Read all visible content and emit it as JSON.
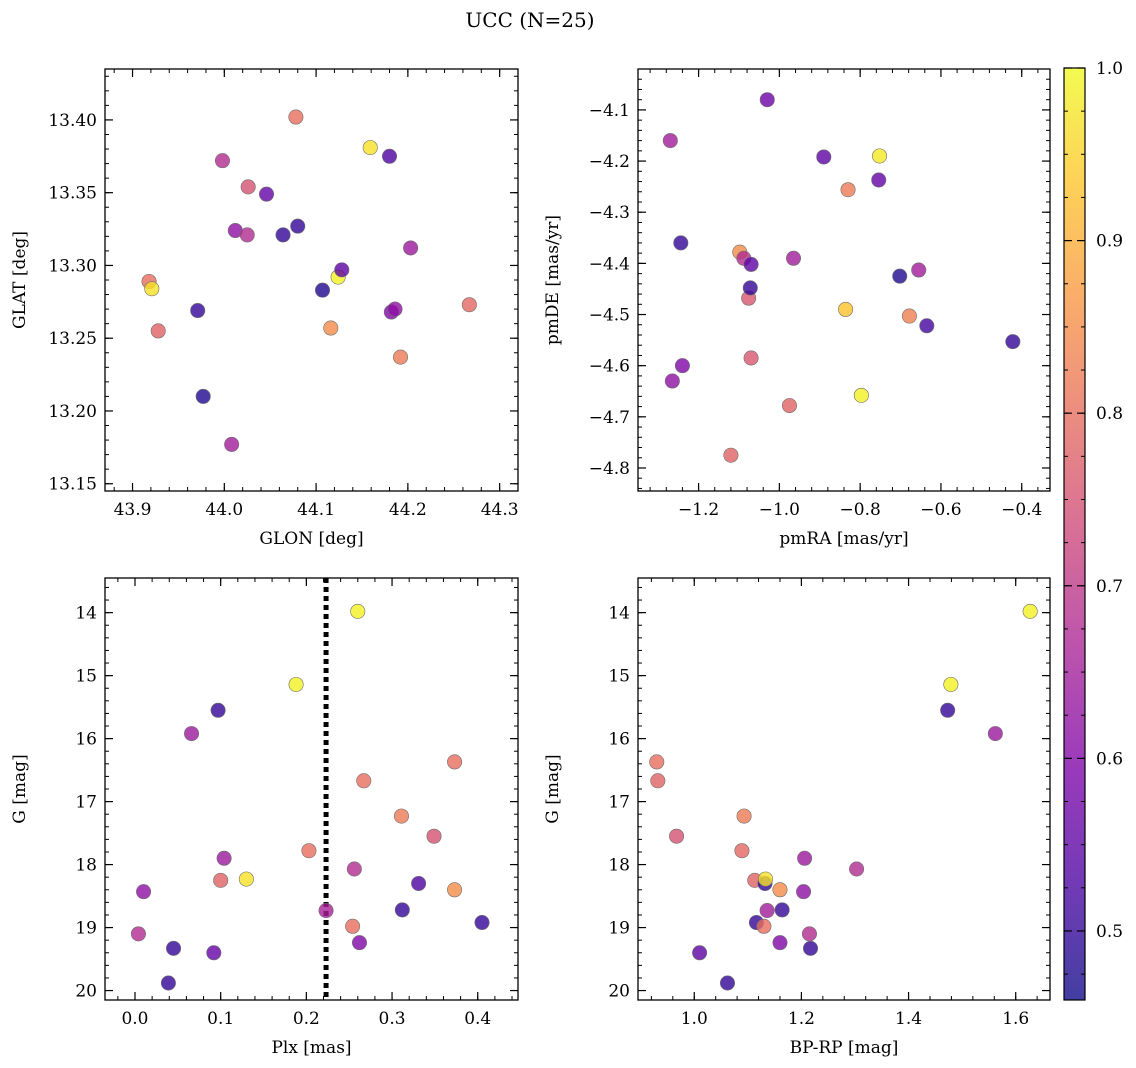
{
  "figure": {
    "title": "UCC (N=25)"
  },
  "colorbar": {
    "colormap": "plasma",
    "range": [
      0.46,
      1.0
    ],
    "ticks": [
      0.5,
      0.6,
      0.7,
      0.8,
      0.9,
      1.0
    ],
    "tick_labels": [
      "0.5",
      "0.6",
      "0.7",
      "0.8",
      "0.9",
      "1.0"
    ]
  },
  "chart_data": [
    {
      "type": "scatter",
      "xlabel": "GLON [deg]",
      "ylabel": "GLAT [deg]",
      "xlim": [
        43.87,
        44.32
      ],
      "ylim": [
        13.145,
        13.435
      ],
      "xticks": [
        43.9,
        44.0,
        44.1,
        44.2,
        44.3
      ],
      "xtick_labels": [
        "43.9",
        "44.0",
        "44.1",
        "44.2",
        "44.3"
      ],
      "yticks": [
        13.15,
        13.2,
        13.25,
        13.3,
        13.35,
        13.4
      ],
      "ytick_labels": [
        "13.15",
        "13.20",
        "13.25",
        "13.30",
        "13.35",
        "13.40"
      ],
      "y_inverted": false,
      "points": [
        {
          "x": 43.918,
          "y": 13.289,
          "c": 0.8
        },
        {
          "x": 43.921,
          "y": 13.284,
          "c": 0.97
        },
        {
          "x": 43.928,
          "y": 13.255,
          "c": 0.78
        },
        {
          "x": 43.971,
          "y": 13.269,
          "c": 0.5
        },
        {
          "x": 43.977,
          "y": 13.21,
          "c": 0.48
        },
        {
          "x": 43.998,
          "y": 13.372,
          "c": 0.68
        },
        {
          "x": 44.008,
          "y": 13.177,
          "c": 0.65
        },
        {
          "x": 44.012,
          "y": 13.324,
          "c": 0.62
        },
        {
          "x": 44.025,
          "y": 13.321,
          "c": 0.68
        },
        {
          "x": 44.026,
          "y": 13.354,
          "c": 0.75
        },
        {
          "x": 44.046,
          "y": 13.349,
          "c": 0.56
        },
        {
          "x": 44.064,
          "y": 13.321,
          "c": 0.5
        },
        {
          "x": 44.078,
          "y": 13.402,
          "c": 0.8
        },
        {
          "x": 44.08,
          "y": 13.327,
          "c": 0.5
        },
        {
          "x": 44.107,
          "y": 13.283,
          "c": 0.48
        },
        {
          "x": 44.116,
          "y": 13.257,
          "c": 0.85
        },
        {
          "x": 44.124,
          "y": 13.292,
          "c": 0.99
        },
        {
          "x": 44.128,
          "y": 13.297,
          "c": 0.55
        },
        {
          "x": 44.159,
          "y": 13.381,
          "c": 0.97
        },
        {
          "x": 44.18,
          "y": 13.375,
          "c": 0.53
        },
        {
          "x": 44.182,
          "y": 13.268,
          "c": 0.6
        },
        {
          "x": 44.186,
          "y": 13.27,
          "c": 0.62
        },
        {
          "x": 44.192,
          "y": 13.237,
          "c": 0.82
        },
        {
          "x": 44.203,
          "y": 13.312,
          "c": 0.64
        },
        {
          "x": 44.267,
          "y": 13.273,
          "c": 0.79
        }
      ]
    },
    {
      "type": "scatter",
      "xlabel": "pmRA [mas/yr]",
      "ylabel": "pmDE [mas/yr]",
      "xlim": [
        -1.35,
        -0.33
      ],
      "ylim": [
        -4.845,
        -4.02
      ],
      "xticks": [
        -1.2,
        -1.0,
        -0.8,
        -0.6,
        -0.4
      ],
      "xtick_labels": [
        "−1.2",
        "−1.0",
        "−0.8",
        "−0.6",
        "−0.4"
      ],
      "yticks": [
        -4.8,
        -4.7,
        -4.6,
        -4.5,
        -4.4,
        -4.3,
        -4.2,
        -4.1
      ],
      "ytick_labels": [
        "−4.8",
        "−4.7",
        "−4.6",
        "−4.5",
        "−4.4",
        "−4.3",
        "−4.2",
        "−4.1"
      ],
      "y_inverted": false,
      "points": [
        {
          "x": -1.27,
          "y": -4.16,
          "c": 0.65
        },
        {
          "x": -1.265,
          "y": -4.63,
          "c": 0.62
        },
        {
          "x": -1.244,
          "y": -4.36,
          "c": 0.5
        },
        {
          "x": -1.24,
          "y": -4.6,
          "c": 0.6
        },
        {
          "x": -1.12,
          "y": -4.775,
          "c": 0.78
        },
        {
          "x": -1.098,
          "y": -4.378,
          "c": 0.85
        },
        {
          "x": -1.088,
          "y": -4.39,
          "c": 0.68
        },
        {
          "x": -1.076,
          "y": -4.468,
          "c": 0.76
        },
        {
          "x": -1.072,
          "y": -4.448,
          "c": 0.5
        },
        {
          "x": -1.07,
          "y": -4.402,
          "c": 0.55
        },
        {
          "x": -1.07,
          "y": -4.585,
          "c": 0.76
        },
        {
          "x": -1.03,
          "y": -4.08,
          "c": 0.57
        },
        {
          "x": -0.975,
          "y": -4.678,
          "c": 0.78
        },
        {
          "x": -0.965,
          "y": -4.39,
          "c": 0.65
        },
        {
          "x": -0.89,
          "y": -4.192,
          "c": 0.55
        },
        {
          "x": -0.836,
          "y": -4.49,
          "c": 0.93
        },
        {
          "x": -0.83,
          "y": -4.256,
          "c": 0.82
        },
        {
          "x": -0.797,
          "y": -4.658,
          "c": 0.99
        },
        {
          "x": -0.754,
          "y": -4.237,
          "c": 0.56
        },
        {
          "x": -0.752,
          "y": -4.19,
          "c": 0.98
        },
        {
          "x": -0.702,
          "y": -4.425,
          "c": 0.48
        },
        {
          "x": -0.678,
          "y": -4.503,
          "c": 0.83
        },
        {
          "x": -0.655,
          "y": -4.413,
          "c": 0.65
        },
        {
          "x": -0.635,
          "y": -4.522,
          "c": 0.52
        },
        {
          "x": -0.422,
          "y": -4.553,
          "c": 0.5
        }
      ]
    },
    {
      "type": "scatter",
      "xlabel": "Plx [mas]",
      "ylabel": "G [mag]",
      "xlim": [
        -0.035,
        0.447
      ],
      "ylim": [
        20.15,
        13.45
      ],
      "xticks": [
        0.0,
        0.1,
        0.2,
        0.3,
        0.4
      ],
      "xtick_labels": [
        "0.0",
        "0.1",
        "0.2",
        "0.3",
        "0.4"
      ],
      "yticks": [
        14,
        15,
        16,
        17,
        18,
        19,
        20
      ],
      "ytick_labels": [
        "14",
        "15",
        "16",
        "17",
        "18",
        "19",
        "20"
      ],
      "y_inverted": true,
      "vline": {
        "x": 0.223,
        "style": "dotted",
        "color": "#000000"
      },
      "points": [
        {
          "x": 0.004,
          "y": 19.1,
          "c": 0.68
        },
        {
          "x": 0.01,
          "y": 18.43,
          "c": 0.62
        },
        {
          "x": 0.039,
          "y": 19.88,
          "c": 0.5
        },
        {
          "x": 0.045,
          "y": 19.33,
          "c": 0.5
        },
        {
          "x": 0.066,
          "y": 15.92,
          "c": 0.64
        },
        {
          "x": 0.092,
          "y": 19.4,
          "c": 0.56
        },
        {
          "x": 0.097,
          "y": 15.55,
          "c": 0.5
        },
        {
          "x": 0.1,
          "y": 18.25,
          "c": 0.78
        },
        {
          "x": 0.104,
          "y": 17.9,
          "c": 0.64
        },
        {
          "x": 0.13,
          "y": 18.23,
          "c": 0.97
        },
        {
          "x": 0.188,
          "y": 15.14,
          "c": 0.99
        },
        {
          "x": 0.203,
          "y": 17.78,
          "c": 0.8
        },
        {
          "x": 0.223,
          "y": 18.73,
          "c": 0.66
        },
        {
          "x": 0.254,
          "y": 18.98,
          "c": 0.8
        },
        {
          "x": 0.256,
          "y": 18.07,
          "c": 0.68
        },
        {
          "x": 0.26,
          "y": 13.98,
          "c": 0.99
        },
        {
          "x": 0.262,
          "y": 19.24,
          "c": 0.6
        },
        {
          "x": 0.267,
          "y": 16.67,
          "c": 0.8
        },
        {
          "x": 0.311,
          "y": 17.23,
          "c": 0.82
        },
        {
          "x": 0.312,
          "y": 18.72,
          "c": 0.5
        },
        {
          "x": 0.331,
          "y": 18.3,
          "c": 0.53
        },
        {
          "x": 0.349,
          "y": 17.55,
          "c": 0.75
        },
        {
          "x": 0.373,
          "y": 16.37,
          "c": 0.8
        },
        {
          "x": 0.373,
          "y": 18.4,
          "c": 0.85
        },
        {
          "x": 0.405,
          "y": 18.92,
          "c": 0.5
        }
      ]
    },
    {
      "type": "scatter",
      "xlabel": "BP-RP [mag]",
      "ylabel": "G [mag]",
      "xlim": [
        0.895,
        1.664
      ],
      "ylim": [
        20.15,
        13.45
      ],
      "xticks": [
        1.0,
        1.2,
        1.4,
        1.6
      ],
      "xtick_labels": [
        "1.0",
        "1.2",
        "1.4",
        "1.6"
      ],
      "yticks": [
        14,
        15,
        16,
        17,
        18,
        19,
        20
      ],
      "ytick_labels": [
        "14",
        "15",
        "16",
        "17",
        "18",
        "19",
        "20"
      ],
      "y_inverted": true,
      "points": [
        {
          "x": 0.93,
          "y": 16.37,
          "c": 0.8
        },
        {
          "x": 0.932,
          "y": 16.67,
          "c": 0.78
        },
        {
          "x": 0.967,
          "y": 17.55,
          "c": 0.75
        },
        {
          "x": 1.01,
          "y": 19.4,
          "c": 0.55
        },
        {
          "x": 1.062,
          "y": 19.88,
          "c": 0.5
        },
        {
          "x": 1.089,
          "y": 17.78,
          "c": 0.79
        },
        {
          "x": 1.093,
          "y": 17.23,
          "c": 0.82
        },
        {
          "x": 1.113,
          "y": 18.25,
          "c": 0.78
        },
        {
          "x": 1.116,
          "y": 18.92,
          "c": 0.5
        },
        {
          "x": 1.13,
          "y": 18.98,
          "c": 0.8
        },
        {
          "x": 1.132,
          "y": 18.3,
          "c": 0.5
        },
        {
          "x": 1.133,
          "y": 18.23,
          "c": 0.97
        },
        {
          "x": 1.136,
          "y": 18.73,
          "c": 0.65
        },
        {
          "x": 1.16,
          "y": 18.4,
          "c": 0.85
        },
        {
          "x": 1.16,
          "y": 19.24,
          "c": 0.6
        },
        {
          "x": 1.164,
          "y": 18.72,
          "c": 0.5
        },
        {
          "x": 1.204,
          "y": 18.43,
          "c": 0.62
        },
        {
          "x": 1.206,
          "y": 17.9,
          "c": 0.64
        },
        {
          "x": 1.215,
          "y": 19.1,
          "c": 0.68
        },
        {
          "x": 1.217,
          "y": 19.33,
          "c": 0.5
        },
        {
          "x": 1.303,
          "y": 18.07,
          "c": 0.68
        },
        {
          "x": 1.473,
          "y": 15.55,
          "c": 0.5
        },
        {
          "x": 1.479,
          "y": 15.14,
          "c": 0.99
        },
        {
          "x": 1.562,
          "y": 15.92,
          "c": 0.64
        },
        {
          "x": 1.627,
          "y": 13.98,
          "c": 0.99
        }
      ]
    }
  ]
}
